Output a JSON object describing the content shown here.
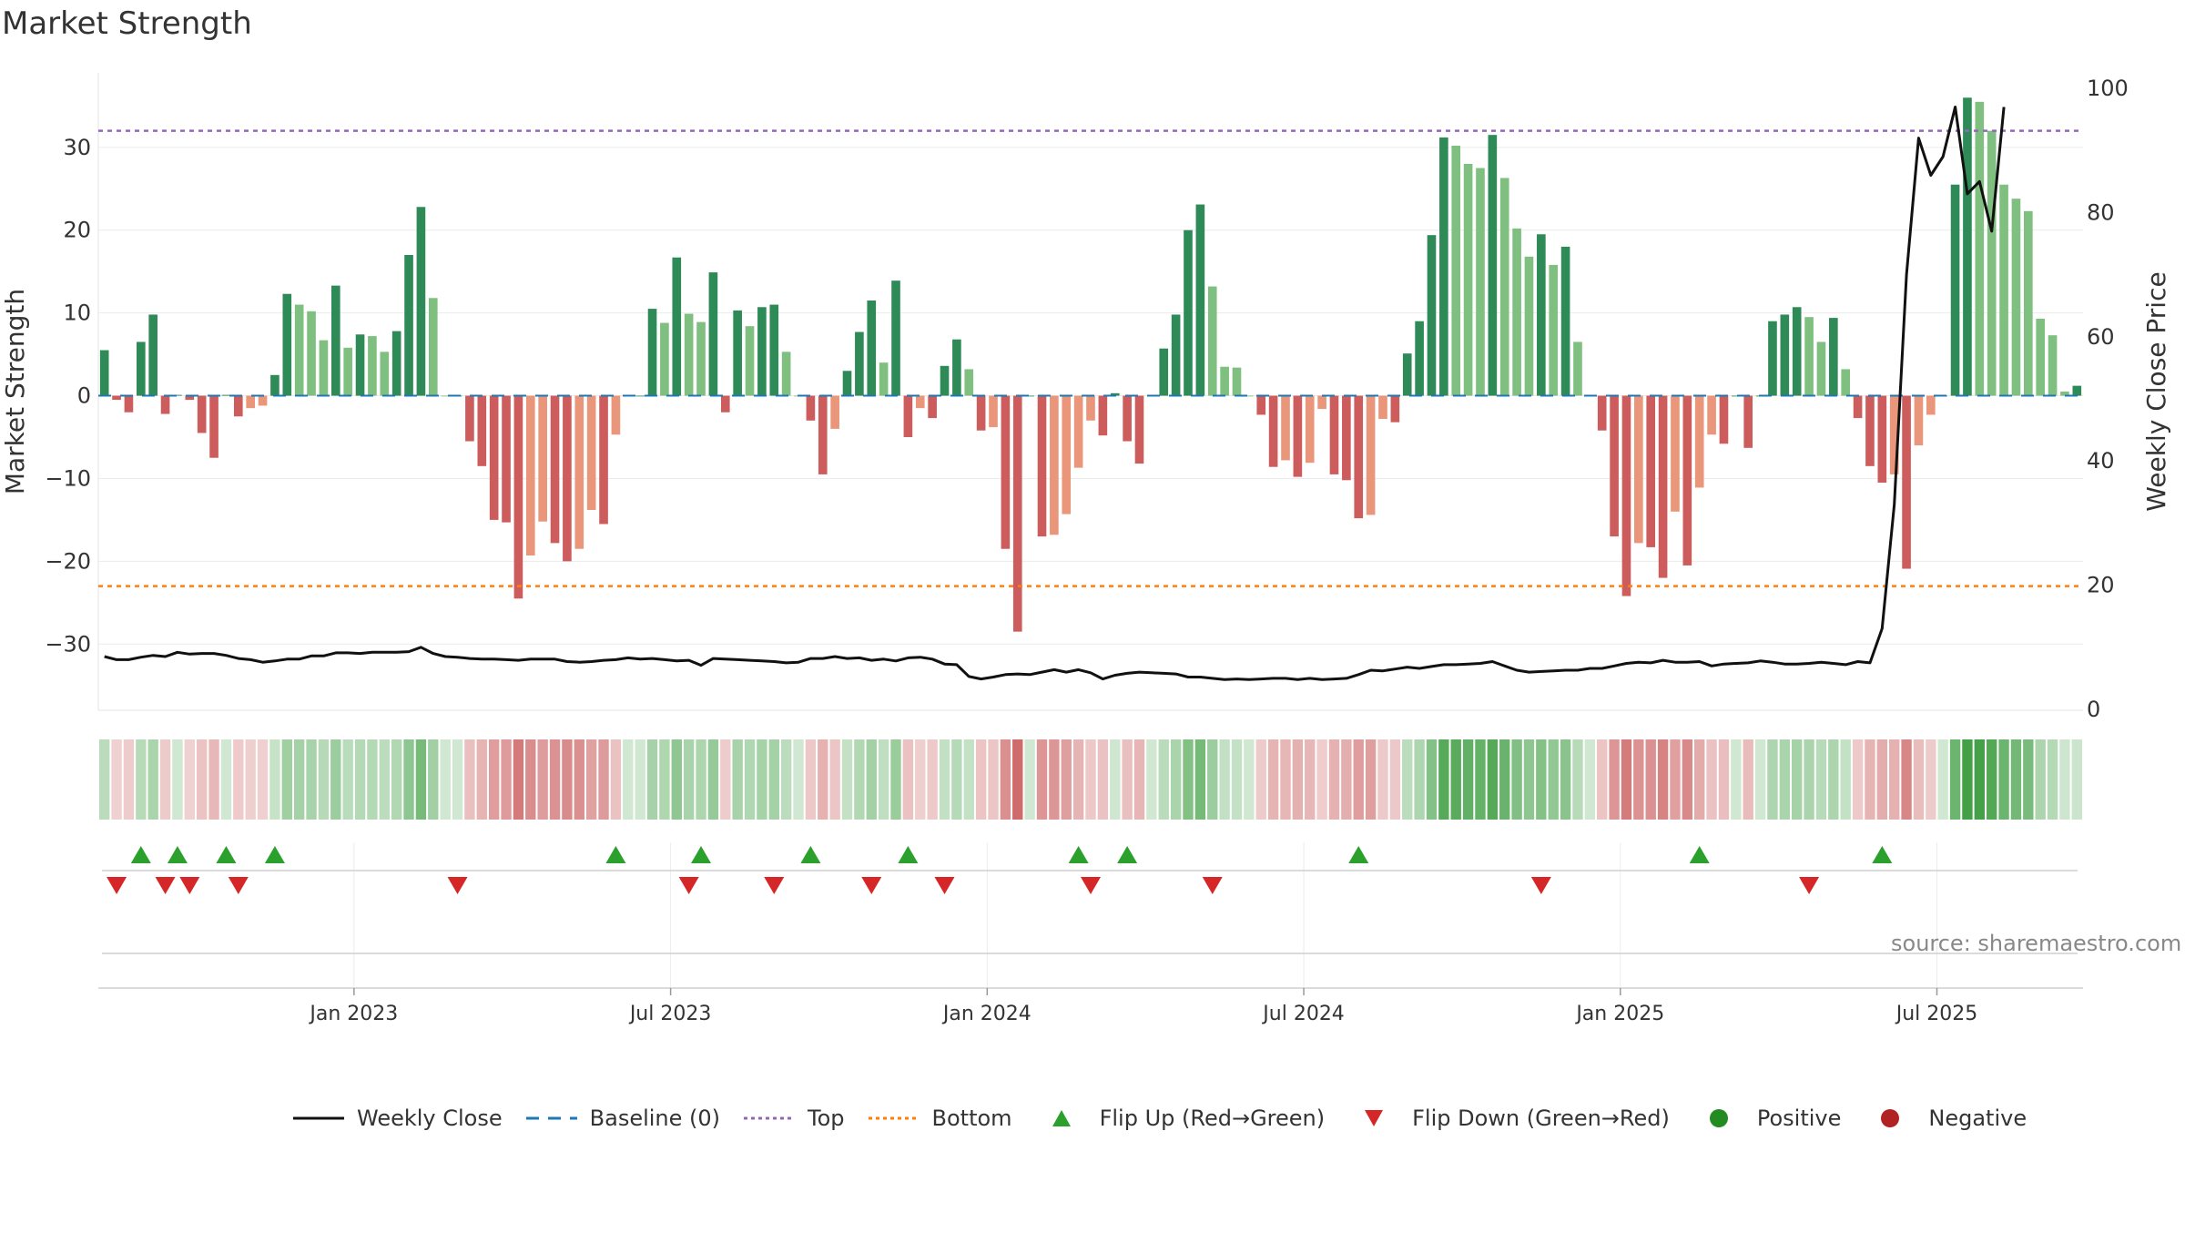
{
  "title": "Market Strength",
  "source": "source: sharemaestro.com",
  "colors": {
    "dark_green": "#2e8b57",
    "light_green": "#7fbf7f",
    "dark_red": "#cd5c5c",
    "light_red": "#e9967a",
    "close_line": "#111111",
    "baseline": "#1f77b4",
    "top": "#9467bd",
    "bottom": "#ff7f0e",
    "flip_up": "#2ca02c",
    "flip_down": "#d62728",
    "positive": "#228b22",
    "negative": "#b22222"
  },
  "legend": [
    {
      "label": "Weekly Close",
      "symbol": "line-solid",
      "color": "#111111"
    },
    {
      "label": "Baseline (0)",
      "symbol": "line-dashed",
      "color": "#1f77b4"
    },
    {
      "label": "Top",
      "symbol": "line-dotted",
      "color": "#9467bd"
    },
    {
      "label": "Bottom",
      "symbol": "line-dotted",
      "color": "#ff7f0e"
    },
    {
      "label": "Flip Up (Red→Green)",
      "symbol": "triangle-up",
      "color": "#2ca02c"
    },
    {
      "label": "Flip Down (Green→Red)",
      "symbol": "triangle-down",
      "color": "#d62728"
    },
    {
      "label": "Positive",
      "symbol": "dot",
      "color": "#228b22"
    },
    {
      "label": "Negative",
      "symbol": "dot",
      "color": "#b22222"
    }
  ],
  "chart_data": {
    "type": "bar",
    "x_axis": {
      "ticks": [
        "Jan 2023",
        "Jul 2023",
        "Jan 2024",
        "Jul 2024",
        "Jan 2025",
        "Jul 2025"
      ]
    },
    "y_left": {
      "label": "Market Strength",
      "ylim": [
        -38,
        39
      ],
      "ticks": [
        30,
        20,
        10,
        0,
        -10,
        -20,
        -30
      ]
    },
    "y_right": {
      "label": "Weekly Close Price",
      "ylim": [
        0,
        100
      ],
      "ticks": [
        100,
        80,
        60,
        40,
        20,
        0
      ]
    },
    "top": 32,
    "bottom": -23,
    "baseline": 0,
    "strength": [
      5.5,
      -0.5,
      -2,
      6.5,
      9.8,
      -2.2,
      0.1,
      -0.5,
      -4.5,
      -7.5,
      0.1,
      -2.5,
      -1.5,
      -1.2,
      2.5,
      12.3,
      11,
      10.2,
      6.7,
      13.3,
      5.8,
      7.4,
      7.2,
      5.3,
      7.8,
      17,
      22.8,
      11.8,
      0,
      0,
      -5.5,
      -8.5,
      -15,
      -15.3,
      -24.5,
      -19.3,
      -15.2,
      -17.8,
      -20,
      -18.5,
      -13.8,
      -15.5,
      -4.7,
      0,
      0,
      10.5,
      8.8,
      16.7,
      9.9,
      8.9,
      14.9,
      -2,
      10.3,
      8.4,
      10.7,
      11,
      5.3,
      0,
      -3,
      -9.5,
      -4,
      3,
      7.7,
      11.5,
      4,
      13.9,
      -5,
      -1.5,
      -2.7,
      3.6,
      6.8,
      3.2,
      -4.2,
      -3.8,
      -18.5,
      -28.5,
      0,
      -17,
      -16.8,
      -14.3,
      -8.7,
      -3,
      -4.8,
      0.3,
      -5.5,
      -8.2,
      0,
      5.7,
      9.8,
      20,
      23.1,
      13.2,
      3.5,
      3.4,
      0,
      -2.3,
      -8.6,
      -7.8,
      -9.8,
      -8.1,
      -1.6,
      -9.5,
      -10.2,
      -14.8,
      -14.4,
      -2.8,
      -3.2,
      5.1,
      9,
      19.4,
      31.2,
      30.2,
      28,
      27.5,
      31.5,
      26.3,
      20.2,
      16.8,
      19.5,
      15.8,
      18,
      6.5,
      0,
      -4.2,
      -17,
      -24.2,
      -17.8,
      -18.3,
      -22,
      -14,
      -20.5,
      -11.1,
      -4.7,
      -5.8,
      0,
      -6.3,
      0,
      9,
      9.8,
      10.7,
      9.5,
      6.5,
      9.4,
      3.2,
      -2.7,
      -8.5,
      -10.5,
      -9.5,
      -20.9,
      -6,
      -2.3,
      0,
      25.5,
      36,
      35.5,
      32,
      25.5,
      23.8,
      22.3,
      9.3,
      7.3,
      0.5,
      1.2
    ],
    "flip_up_weeks": [
      3,
      6,
      10,
      14,
      42,
      49,
      58,
      66,
      80,
      84,
      103,
      131,
      146
    ],
    "flip_down_weeks": [
      1,
      5,
      7,
      11,
      29,
      48,
      55,
      63,
      69,
      81,
      91,
      118,
      140
    ],
    "weekly_close": [
      [
        0,
        8.5
      ],
      [
        1,
        8
      ],
      [
        2,
        8
      ],
      [
        3,
        8.4
      ],
      [
        4,
        8.7
      ],
      [
        5,
        8.5
      ],
      [
        6,
        9.2
      ],
      [
        7,
        8.9
      ],
      [
        8,
        9
      ],
      [
        9,
        9
      ],
      [
        10,
        8.7
      ],
      [
        11,
        8.2
      ],
      [
        12,
        8
      ],
      [
        13,
        7.6
      ],
      [
        14,
        7.8
      ],
      [
        15,
        8.1
      ],
      [
        16,
        8.1
      ],
      [
        17,
        8.6
      ],
      [
        18,
        8.6
      ],
      [
        19,
        9.1
      ],
      [
        20,
        9.1
      ],
      [
        21,
        9
      ],
      [
        22,
        9.2
      ],
      [
        23,
        9.2
      ],
      [
        24,
        9.2
      ],
      [
        25,
        9.3
      ],
      [
        26,
        10
      ],
      [
        27,
        9
      ],
      [
        28,
        8.5
      ],
      [
        29,
        8.4
      ],
      [
        30,
        8.2
      ],
      [
        31,
        8.1
      ],
      [
        32,
        8.1
      ],
      [
        33,
        8
      ],
      [
        34,
        7.9
      ],
      [
        35,
        8.1
      ],
      [
        36,
        8.1
      ],
      [
        37,
        8.1
      ],
      [
        38,
        7.7
      ],
      [
        39,
        7.6
      ],
      [
        40,
        7.7
      ],
      [
        41,
        7.9
      ],
      [
        42,
        8
      ],
      [
        43,
        8.3
      ],
      [
        44,
        8.1
      ],
      [
        45,
        8.2
      ],
      [
        46,
        8
      ],
      [
        47,
        7.8
      ],
      [
        48,
        7.9
      ],
      [
        49,
        7.1
      ],
      [
        50,
        8.2
      ],
      [
        51,
        8.1
      ],
      [
        52,
        8
      ],
      [
        53,
        7.9
      ],
      [
        54,
        7.8
      ],
      [
        55,
        7.7
      ],
      [
        56,
        7.5
      ],
      [
        57,
        7.6
      ],
      [
        58,
        8.2
      ],
      [
        59,
        8.2
      ],
      [
        60,
        8.5
      ],
      [
        61,
        8.2
      ],
      [
        62,
        8.3
      ],
      [
        63,
        7.9
      ],
      [
        64,
        8.1
      ],
      [
        65,
        7.8
      ],
      [
        66,
        8.3
      ],
      [
        67,
        8.4
      ],
      [
        68,
        8.1
      ],
      [
        69,
        7.3
      ],
      [
        70,
        7.2
      ],
      [
        71,
        5.3
      ],
      [
        72,
        4.9
      ],
      [
        73,
        5.2
      ],
      [
        74,
        5.6
      ],
      [
        75,
        5.7
      ],
      [
        76,
        5.6
      ],
      [
        77,
        6
      ],
      [
        78,
        6.4
      ],
      [
        79,
        6
      ],
      [
        80,
        6.4
      ],
      [
        81,
        5.9
      ],
      [
        82,
        4.9
      ],
      [
        83,
        5.5
      ],
      [
        84,
        5.8
      ],
      [
        85,
        6
      ],
      [
        86,
        5.9
      ],
      [
        87,
        5.8
      ],
      [
        88,
        5.7
      ],
      [
        89,
        5.2
      ],
      [
        90,
        5.2
      ],
      [
        91,
        5
      ],
      [
        92,
        4.8
      ],
      [
        93,
        4.9
      ],
      [
        94,
        4.8
      ],
      [
        95,
        4.9
      ],
      [
        96,
        5
      ],
      [
        97,
        5
      ],
      [
        98,
        4.8
      ],
      [
        99,
        5
      ],
      [
        100,
        4.8
      ],
      [
        101,
        4.9
      ],
      [
        102,
        5
      ],
      [
        103,
        5.6
      ],
      [
        104,
        6.3
      ],
      [
        105,
        6.2
      ],
      [
        106,
        6.5
      ],
      [
        107,
        6.8
      ],
      [
        108,
        6.6
      ],
      [
        109,
        6.9
      ],
      [
        110,
        7.2
      ],
      [
        111,
        7.2
      ],
      [
        112,
        7.3
      ],
      [
        113,
        7.4
      ],
      [
        114,
        7.7
      ],
      [
        115,
        7
      ],
      [
        116,
        6.3
      ],
      [
        117,
        6
      ],
      [
        118,
        6.1
      ],
      [
        119,
        6.2
      ],
      [
        120,
        6.3
      ],
      [
        121,
        6.3
      ],
      [
        122,
        6.6
      ],
      [
        123,
        6.6
      ],
      [
        124,
        7
      ],
      [
        125,
        7.4
      ],
      [
        126,
        7.6
      ],
      [
        127,
        7.5
      ],
      [
        128,
        7.9
      ],
      [
        129,
        7.6
      ],
      [
        130,
        7.6
      ],
      [
        131,
        7.7
      ],
      [
        132,
        7
      ],
      [
        133,
        7.3
      ],
      [
        134,
        7.4
      ],
      [
        135,
        7.5
      ],
      [
        136,
        7.8
      ],
      [
        137,
        7.6
      ],
      [
        138,
        7.3
      ],
      [
        139,
        7.3
      ],
      [
        140,
        7.4
      ],
      [
        141,
        7.6
      ],
      [
        142,
        7.4
      ],
      [
        143,
        7.2
      ],
      [
        144,
        7.7
      ],
      [
        145,
        7.5
      ],
      [
        146,
        13
      ],
      [
        147,
        33
      ],
      [
        148,
        70
      ],
      [
        149,
        92
      ],
      [
        150,
        86
      ],
      [
        151,
        89
      ],
      [
        152,
        97
      ],
      [
        153,
        83
      ],
      [
        154,
        85
      ],
      [
        155,
        77
      ],
      [
        156,
        97
      ]
    ]
  }
}
